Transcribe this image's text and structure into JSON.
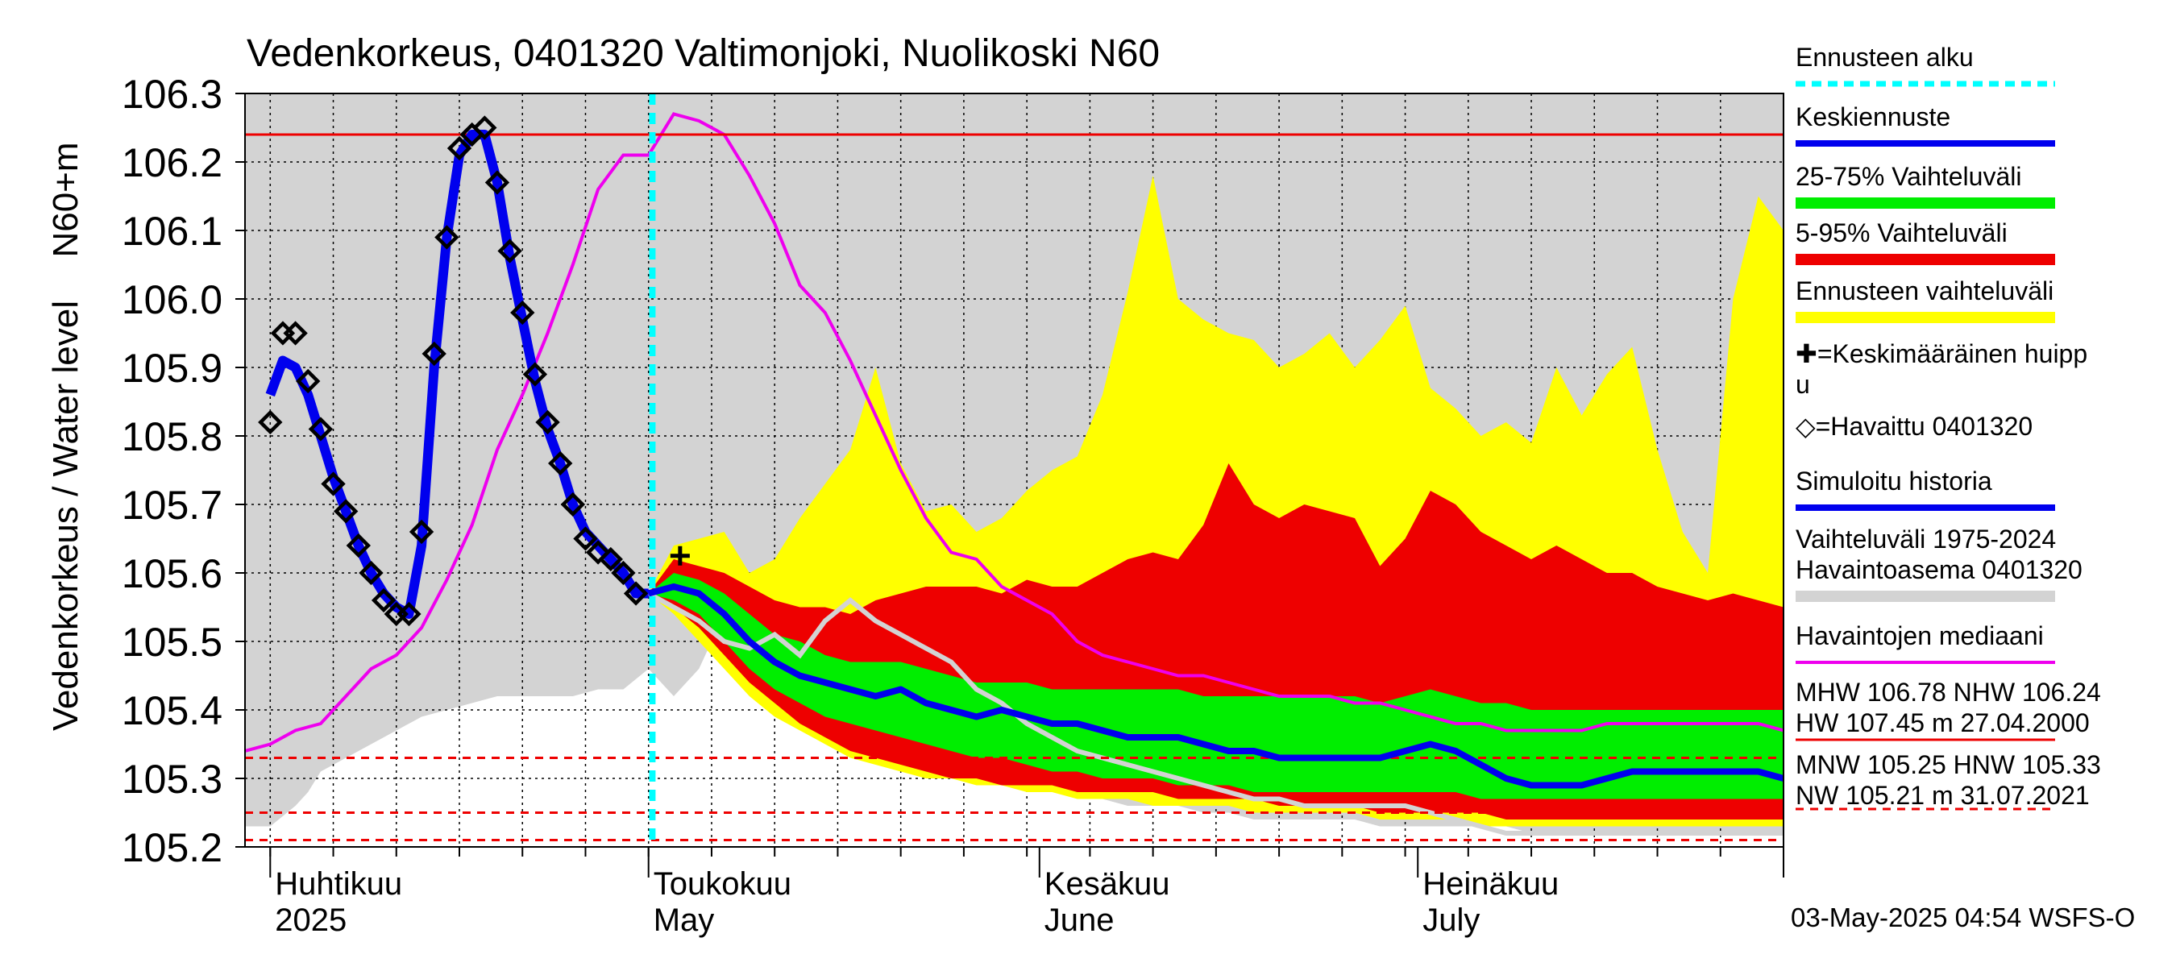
{
  "chart_data": {
    "type": "line",
    "title": "Vedenkorkeus, 0401320 Valtimonjoki, Nuolikoski N60",
    "ylabel_outer": "Vedenkorkeus / Water level",
    "ylabel_inner": "N60+m",
    "ylim": [
      105.2,
      106.3
    ],
    "yticks": [
      "105.2",
      "105.3",
      "105.4",
      "105.5",
      "105.6",
      "105.7",
      "105.8",
      "105.9",
      "106.0",
      "106.1",
      "106.2",
      "106.3"
    ],
    "xlim_days": [
      -2,
      120
    ],
    "month_labels": [
      {
        "fi": "Huhtikuu",
        "en": "2025",
        "day": 0
      },
      {
        "fi": "Toukokuu",
        "en": "May",
        "day": 30
      },
      {
        "fi": "Kesäkuu",
        "en": "June",
        "day": 61
      },
      {
        "fi": "Heinäkuu",
        "en": "July",
        "day": 91
      }
    ],
    "forecast_start_day": 30.3,
    "hline_red_level": 106.24,
    "dashed_levels": [
      105.33,
      105.25,
      105.21
    ],
    "mean_peak": {
      "day": 32.5,
      "value": 105.625
    },
    "observed": {
      "x": [
        0,
        1,
        2,
        3,
        4,
        5,
        6,
        7,
        8,
        9,
        10,
        11,
        12,
        13,
        14,
        15,
        16,
        17,
        18,
        19,
        20,
        21,
        22,
        23,
        24,
        25,
        26,
        27,
        28,
        29
      ],
      "y": [
        105.82,
        105.95,
        105.95,
        105.88,
        105.81,
        105.73,
        105.69,
        105.64,
        105.6,
        105.56,
        105.54,
        105.54,
        105.66,
        105.92,
        106.09,
        106.22,
        106.24,
        106.25,
        106.17,
        106.07,
        105.98,
        105.89,
        105.82,
        105.76,
        105.7,
        105.65,
        105.63,
        105.62,
        105.6,
        105.57
      ]
    },
    "simulated_history": {
      "x": [
        0,
        1,
        2,
        3,
        4,
        5,
        6,
        7,
        8,
        9,
        10,
        11,
        12,
        13,
        14,
        15,
        16,
        17,
        18,
        19,
        20,
        21,
        22,
        23,
        24,
        25,
        26,
        27,
        28,
        29,
        30
      ],
      "y": [
        105.86,
        105.91,
        105.9,
        105.86,
        105.8,
        105.74,
        105.69,
        105.64,
        105.6,
        105.57,
        105.55,
        105.54,
        105.64,
        105.9,
        106.09,
        106.21,
        106.24,
        106.24,
        106.17,
        106.06,
        105.97,
        105.88,
        105.81,
        105.76,
        105.7,
        105.66,
        105.64,
        105.62,
        105.6,
        105.57,
        105.57
      ]
    },
    "forecast_x": [
      30,
      32,
      34,
      36,
      38,
      40,
      42,
      44,
      46,
      48,
      50,
      52,
      54,
      56,
      58,
      60,
      62,
      64,
      66,
      68,
      70,
      72,
      74,
      76,
      78,
      80,
      82,
      84,
      86,
      88,
      90,
      92,
      94,
      96,
      98,
      100,
      102,
      104,
      106,
      108,
      110,
      112,
      114,
      116,
      118,
      120
    ],
    "forecast_mean": [
      105.57,
      105.58,
      105.57,
      105.54,
      105.5,
      105.47,
      105.45,
      105.44,
      105.43,
      105.42,
      105.43,
      105.41,
      105.4,
      105.39,
      105.4,
      105.39,
      105.38,
      105.38,
      105.37,
      105.36,
      105.36,
      105.36,
      105.35,
      105.34,
      105.34,
      105.33,
      105.33,
      105.33,
      105.33,
      105.33,
      105.34,
      105.35,
      105.34,
      105.32,
      105.3,
      105.29,
      105.29,
      105.29,
      105.3,
      105.31,
      105.31,
      105.31,
      105.31,
      105.31,
      105.31,
      105.3
    ],
    "band_25_75": {
      "low": [
        105.57,
        105.56,
        105.54,
        105.5,
        105.46,
        105.43,
        105.41,
        105.39,
        105.38,
        105.37,
        105.36,
        105.35,
        105.34,
        105.33,
        105.33,
        105.32,
        105.31,
        105.31,
        105.3,
        105.3,
        105.3,
        105.29,
        105.29,
        105.29,
        105.28,
        105.28,
        105.28,
        105.28,
        105.28,
        105.28,
        105.28,
        105.28,
        105.28,
        105.27,
        105.27,
        105.27,
        105.27,
        105.27,
        105.27,
        105.27,
        105.27,
        105.27,
        105.27,
        105.27,
        105.27,
        105.27
      ],
      "high": [
        105.57,
        105.6,
        105.59,
        105.57,
        105.54,
        105.51,
        105.5,
        105.48,
        105.47,
        105.47,
        105.47,
        105.46,
        105.45,
        105.44,
        105.44,
        105.44,
        105.43,
        105.43,
        105.43,
        105.43,
        105.43,
        105.43,
        105.42,
        105.42,
        105.42,
        105.42,
        105.42,
        105.42,
        105.42,
        105.41,
        105.42,
        105.43,
        105.42,
        105.41,
        105.41,
        105.4,
        105.4,
        105.4,
        105.4,
        105.4,
        105.4,
        105.4,
        105.4,
        105.4,
        105.4,
        105.4
      ]
    },
    "band_5_95": {
      "low": [
        105.57,
        105.55,
        105.52,
        105.48,
        105.44,
        105.41,
        105.38,
        105.36,
        105.34,
        105.33,
        105.32,
        105.31,
        105.3,
        105.3,
        105.29,
        105.29,
        105.29,
        105.28,
        105.28,
        105.28,
        105.28,
        105.27,
        105.27,
        105.27,
        105.27,
        105.26,
        105.26,
        105.26,
        105.26,
        105.25,
        105.25,
        105.25,
        105.25,
        105.25,
        105.24,
        105.24,
        105.24,
        105.24,
        105.24,
        105.24,
        105.24,
        105.24,
        105.24,
        105.24,
        105.24,
        105.24
      ],
      "high": [
        105.57,
        105.62,
        105.61,
        105.6,
        105.58,
        105.56,
        105.55,
        105.55,
        105.54,
        105.56,
        105.57,
        105.58,
        105.58,
        105.58,
        105.57,
        105.59,
        105.58,
        105.58,
        105.6,
        105.62,
        105.63,
        105.62,
        105.67,
        105.76,
        105.7,
        105.68,
        105.7,
        105.69,
        105.68,
        105.61,
        105.65,
        105.72,
        105.7,
        105.66,
        105.64,
        105.62,
        105.64,
        105.62,
        105.6,
        105.6,
        105.58,
        105.57,
        105.56,
        105.57,
        105.56,
        105.55
      ]
    },
    "band_forecast_range": {
      "low": [
        105.57,
        105.54,
        105.5,
        105.46,
        105.42,
        105.39,
        105.37,
        105.35,
        105.33,
        105.32,
        105.31,
        105.3,
        105.3,
        105.29,
        105.29,
        105.28,
        105.28,
        105.27,
        105.27,
        105.27,
        105.26,
        105.26,
        105.26,
        105.26,
        105.25,
        105.25,
        105.25,
        105.25,
        105.25,
        105.24,
        105.24,
        105.24,
        105.24,
        105.23,
        105.23,
        105.23,
        105.23,
        105.23,
        105.23,
        105.23,
        105.23,
        105.23,
        105.23,
        105.23,
        105.23,
        105.23
      ],
      "high": [
        105.57,
        105.64,
        105.65,
        105.66,
        105.6,
        105.62,
        105.68,
        105.73,
        105.78,
        105.9,
        105.76,
        105.69,
        105.7,
        105.66,
        105.68,
        105.72,
        105.75,
        105.77,
        105.86,
        106.01,
        106.18,
        106.0,
        105.97,
        105.95,
        105.94,
        105.9,
        105.92,
        105.95,
        105.9,
        105.94,
        105.99,
        105.87,
        105.84,
        105.8,
        105.82,
        105.79,
        105.9,
        105.83,
        105.89,
        105.93,
        105.78,
        105.66,
        105.6,
        106.0,
        106.15,
        106.1
      ]
    },
    "historical_range": {
      "x": [
        -2,
        0,
        2,
        3,
        4,
        6,
        8,
        10,
        12,
        14,
        16,
        18,
        20,
        22,
        24,
        26,
        28,
        30,
        32,
        34,
        36,
        38,
        40,
        42,
        44,
        46,
        48,
        50,
        52,
        54,
        56,
        58,
        60,
        62,
        64,
        66,
        68,
        70,
        72,
        74,
        76,
        78,
        80,
        82,
        84,
        86,
        88,
        90,
        92,
        94,
        96,
        98,
        100,
        102,
        104,
        106,
        108,
        110,
        112,
        114,
        116,
        118,
        120
      ],
      "low": [
        105.23,
        105.23,
        105.26,
        105.28,
        105.31,
        105.33,
        105.35,
        105.37,
        105.39,
        105.4,
        105.41,
        105.42,
        105.42,
        105.42,
        105.42,
        105.43,
        105.43,
        105.46,
        105.42,
        105.46,
        105.54,
        105.56,
        105.56,
        105.56,
        105.52,
        105.48,
        105.44,
        105.41,
        105.38,
        105.35,
        105.33,
        105.31,
        105.3,
        105.29,
        105.28,
        105.27,
        105.26,
        105.26,
        105.26,
        105.25,
        105.25,
        105.24,
        105.24,
        105.24,
        105.24,
        105.24,
        105.23,
        105.23,
        105.23,
        105.23,
        105.23,
        105.23,
        105.22,
        105.22,
        105.22,
        105.22,
        105.22,
        105.22,
        105.22,
        105.22,
        105.22,
        105.22,
        105.22
      ],
      "high": [
        106.3,
        106.3,
        106.3,
        106.3,
        106.3,
        106.3,
        106.3,
        106.3,
        106.3,
        106.3,
        106.3,
        106.3,
        106.3,
        106.3,
        106.3,
        106.3,
        106.3,
        106.3,
        106.3,
        106.3,
        106.3,
        106.3,
        106.3,
        106.3,
        106.3,
        106.3,
        106.3,
        106.3,
        106.3,
        106.3,
        106.3,
        106.3,
        106.3,
        106.3,
        106.3,
        106.3,
        106.3,
        106.3,
        106.3,
        106.3,
        106.3,
        106.3,
        106.3,
        106.3,
        106.3,
        106.3,
        106.3,
        106.3,
        106.3,
        106.3,
        106.3,
        106.3,
        106.3,
        106.3,
        106.3,
        106.3,
        106.3,
        106.3,
        106.3,
        106.3,
        106.3,
        106.3,
        106.3
      ]
    },
    "historical_line": {
      "x": [
        30,
        32,
        34,
        36,
        38,
        40,
        42,
        44,
        46,
        48,
        50,
        52,
        54,
        56,
        58,
        60,
        62,
        64,
        66,
        68,
        70,
        72,
        74,
        76,
        78,
        80,
        82,
        84,
        86,
        88,
        90,
        92,
        94,
        96,
        98,
        100,
        102,
        104,
        106,
        108,
        110,
        112,
        114,
        116,
        118,
        120
      ],
      "y": [
        105.57,
        105.55,
        105.53,
        105.5,
        105.49,
        105.51,
        105.48,
        105.53,
        105.56,
        105.53,
        105.51,
        105.49,
        105.47,
        105.43,
        105.41,
        105.38,
        105.36,
        105.34,
        105.33,
        105.32,
        105.31,
        105.3,
        105.29,
        105.28,
        105.27,
        105.27,
        105.26,
        105.26,
        105.26,
        105.26,
        105.26,
        105.25,
        105.24,
        105.23,
        105.22,
        105.22,
        105.22,
        105.22,
        105.22,
        105.22,
        105.22,
        105.22,
        105.22,
        105.22,
        105.22,
        105.22
      ]
    },
    "median_observed": {
      "x": [
        -2,
        0,
        2,
        4,
        6,
        8,
        10,
        12,
        14,
        16,
        18,
        20,
        22,
        24,
        26,
        28,
        30,
        32,
        34,
        36,
        38,
        40,
        42,
        44,
        46,
        48,
        50,
        52,
        54,
        56,
        58,
        60,
        62,
        64,
        66,
        68,
        70,
        72,
        74,
        76,
        78,
        80,
        82,
        84,
        86,
        88,
        90,
        92,
        94,
        96,
        98,
        100,
        102,
        104,
        106,
        108,
        110,
        112,
        114,
        116,
        118,
        120
      ],
      "y": [
        105.34,
        105.35,
        105.37,
        105.38,
        105.42,
        105.46,
        105.48,
        105.52,
        105.59,
        105.67,
        105.78,
        105.86,
        105.95,
        106.05,
        106.16,
        106.21,
        106.21,
        106.27,
        106.26,
        106.24,
        106.18,
        106.11,
        106.02,
        105.98,
        105.91,
        105.83,
        105.75,
        105.68,
        105.63,
        105.62,
        105.58,
        105.56,
        105.54,
        105.5,
        105.48,
        105.47,
        105.46,
        105.45,
        105.45,
        105.44,
        105.43,
        105.42,
        105.42,
        105.42,
        105.41,
        105.41,
        105.4,
        105.39,
        105.38,
        105.38,
        105.37,
        105.37,
        105.37,
        105.37,
        105.38,
        105.38,
        105.38,
        105.38,
        105.38,
        105.38,
        105.38,
        105.37
      ]
    },
    "legend": [
      {
        "label": "Ennusteen alku",
        "style": "dashed-cyan"
      },
      {
        "label": "Keskiennuste",
        "style": "line-blue"
      },
      {
        "label": "25-75% Vaihteluväli",
        "style": "bar-green"
      },
      {
        "label": "5-95% Vaihteluväli",
        "style": "bar-red"
      },
      {
        "label": "Ennusteen vaihteluväli",
        "style": "bar-yellow"
      },
      {
        "label": "✚=Keskimääräinen huipp",
        "label2": "u",
        "style": "none"
      },
      {
        "label": "◇=Havaittu 0401320",
        "style": "none"
      },
      {
        "label": "Simuloitu historia",
        "style": "line-blue"
      },
      {
        "label": "Vaihteluväli 1975-2024",
        "label2": " Havaintoasema 0401320",
        "style": "bar-gray"
      },
      {
        "label": "Havaintojen mediaani",
        "style": "line-magenta"
      },
      {
        "label": "MHW 106.78 NHW 106.24",
        "label2": "HW 107.45 m 27.04.2000",
        "style": "line-red"
      },
      {
        "label": "MNW 105.25 HNW 105.33",
        "label2": "NW 105.21 m 31.07.2021",
        "style": "dashed-red"
      }
    ],
    "footer": "03-May-2025 04:54 WSFS-O",
    "colors": {
      "mean_forecast": "#0000ee",
      "band_25_75": "#00ee00",
      "band_5_95": "#ee0000",
      "band_forecast": "#ffff00",
      "historical_range": "#d3d3d3",
      "historical_line": "#d3d3d3",
      "median": "#ee00ee",
      "forecast_start": "#00ffff",
      "hw_line": "#ee0000",
      "dashed_red": "#ee0000"
    }
  }
}
